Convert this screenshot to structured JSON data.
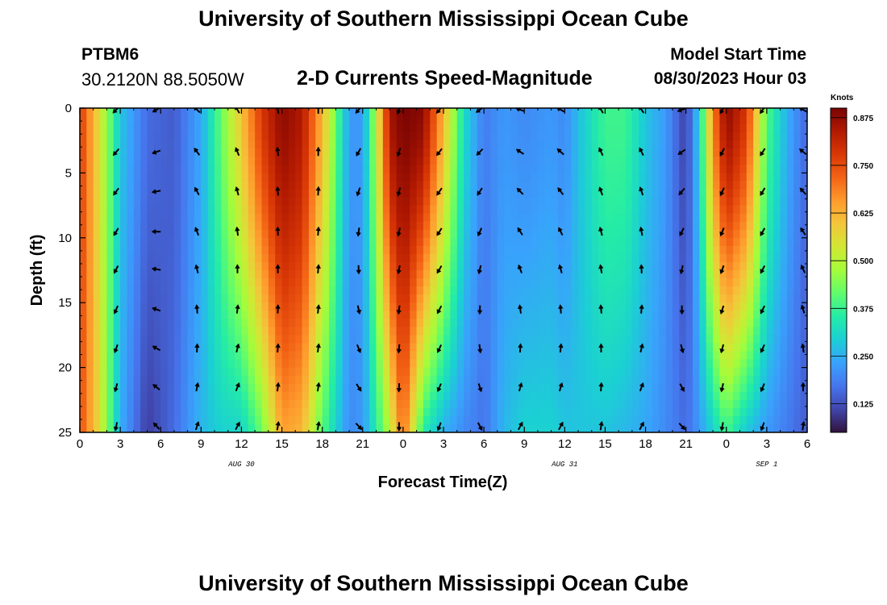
{
  "header": {
    "title": "University of Southern Mississippi Ocean Cube",
    "station": "PTBM6",
    "coords": "30.2120N  88.5050W",
    "chart_title": "2-D Currents Speed-Magnitude",
    "start_label": "Model Start Time",
    "start_value": "08/30/2023 Hour 03"
  },
  "footer": {
    "title": "University of Southern Mississippi Ocean Cube"
  },
  "colors": {
    "colormap": [
      "#30123b",
      "#4145ab",
      "#4675ed",
      "#39a2fc",
      "#1bcfd4",
      "#24eca6",
      "#61fc6c",
      "#a4fc3b",
      "#d1e834",
      "#f3c63a",
      "#fe9b2d",
      "#f36315",
      "#d93806",
      "#b11901",
      "#7a0403"
    ],
    "arrow": "#000000"
  },
  "chart_data": {
    "type": "heatmap",
    "title": "2-D Currents Speed-Magnitude",
    "xlabel": "Forecast Time(Z)",
    "ylabel": "Depth (ft)",
    "x_ticks": [
      "0",
      "3",
      "6",
      "9",
      "12",
      "15",
      "18",
      "21",
      "0",
      "3",
      "6",
      "9",
      "12",
      "15",
      "18",
      "21",
      "0",
      "3",
      "6"
    ],
    "x_hours": [
      0,
      3,
      6,
      9,
      12,
      15,
      18,
      21,
      24,
      27,
      30,
      33,
      36,
      39,
      42,
      45,
      48,
      51,
      54
    ],
    "y_ticks": [
      0,
      5,
      10,
      15,
      20,
      25
    ],
    "y_range": [
      0,
      25
    ],
    "x_range": [
      0,
      54
    ],
    "date_labels": [
      {
        "label": "AUG 30",
        "hour": 12
      },
      {
        "label": "AUG 31",
        "hour": 36
      },
      {
        "label": "SEP 1",
        "hour": 51
      }
    ],
    "colorbar": {
      "label": "Knots",
      "ticks": [
        0.125,
        0.25,
        0.375,
        0.5,
        0.625,
        0.75,
        0.875
      ],
      "tick_labels": [
        "0.125",
        "0.250",
        "0.375",
        "0.500",
        "0.625",
        "0.750",
        "0.875"
      ],
      "range": [
        0.05,
        0.9
      ]
    },
    "speed_profiles": [
      {
        "hour": 0,
        "top": 0.78,
        "bottom": 0.75
      },
      {
        "hour": 1.5,
        "top": 0.55,
        "bottom": 0.55
      },
      {
        "hour": 3,
        "top": 0.28,
        "bottom": 0.25
      },
      {
        "hour": 5,
        "top": 0.16,
        "bottom": 0.1
      },
      {
        "hour": 7,
        "top": 0.14,
        "bottom": 0.16
      },
      {
        "hour": 9,
        "top": 0.24,
        "bottom": 0.26
      },
      {
        "hour": 10.5,
        "top": 0.42,
        "bottom": 0.3
      },
      {
        "hour": 12,
        "top": 0.6,
        "bottom": 0.3
      },
      {
        "hour": 13.5,
        "top": 0.78,
        "bottom": 0.42
      },
      {
        "hour": 15,
        "top": 0.88,
        "bottom": 0.65
      },
      {
        "hour": 16.5,
        "top": 0.84,
        "bottom": 0.62
      },
      {
        "hour": 18,
        "top": 0.62,
        "bottom": 0.4
      },
      {
        "hour": 19,
        "top": 0.42,
        "bottom": 0.3
      },
      {
        "hour": 20,
        "top": 0.22,
        "bottom": 0.2
      },
      {
        "hour": 21,
        "top": 0.22,
        "bottom": 0.22
      },
      {
        "hour": 22,
        "top": 0.5,
        "bottom": 0.35
      },
      {
        "hour": 23,
        "top": 0.85,
        "bottom": 0.5
      },
      {
        "hour": 24,
        "top": 0.9,
        "bottom": 0.72
      },
      {
        "hour": 25.5,
        "top": 0.88,
        "bottom": 0.35
      },
      {
        "hour": 27,
        "top": 0.62,
        "bottom": 0.25
      },
      {
        "hour": 28.5,
        "top": 0.32,
        "bottom": 0.2
      },
      {
        "hour": 30,
        "top": 0.18,
        "bottom": 0.17
      },
      {
        "hour": 31.5,
        "top": 0.22,
        "bottom": 0.26
      },
      {
        "hour": 33,
        "top": 0.2,
        "bottom": 0.3
      },
      {
        "hour": 35,
        "top": 0.22,
        "bottom": 0.3
      },
      {
        "hour": 36,
        "top": 0.2,
        "bottom": 0.28
      },
      {
        "hour": 37.5,
        "top": 0.3,
        "bottom": 0.28
      },
      {
        "hour": 39,
        "top": 0.38,
        "bottom": 0.28
      },
      {
        "hour": 40.5,
        "top": 0.38,
        "bottom": 0.26
      },
      {
        "hour": 42,
        "top": 0.28,
        "bottom": 0.24
      },
      {
        "hour": 43.5,
        "top": 0.22,
        "bottom": 0.2
      },
      {
        "hour": 45,
        "top": 0.1,
        "bottom": 0.16
      },
      {
        "hour": 46,
        "top": 0.3,
        "bottom": 0.22
      },
      {
        "hour": 47,
        "top": 0.68,
        "bottom": 0.3
      },
      {
        "hour": 48,
        "top": 0.88,
        "bottom": 0.38
      },
      {
        "hour": 49.5,
        "top": 0.78,
        "bottom": 0.28
      },
      {
        "hour": 51,
        "top": 0.4,
        "bottom": 0.22
      },
      {
        "hour": 52.5,
        "top": 0.25,
        "bottom": 0.18
      },
      {
        "hour": 54,
        "top": 0.15,
        "bottom": 0.14
      }
    ],
    "vector_depths": [
      0,
      3.25,
      6.3,
      9.4,
      12.3,
      15.4,
      18.4,
      21.4,
      24.4
    ],
    "vector_hours": [
      3,
      6,
      9,
      12,
      15,
      18,
      21,
      24,
      27,
      30,
      33,
      36,
      39,
      42,
      45,
      48,
      51,
      54
    ],
    "direction_profiles": [
      {
        "hour": 3,
        "top": 225,
        "bottom": 190
      },
      {
        "hour": 6,
        "top": 240,
        "bottom": 320
      },
      {
        "hour": 9,
        "top": 315,
        "bottom": 20
      },
      {
        "hour": 12,
        "top": 330,
        "bottom": 30
      },
      {
        "hour": 15,
        "top": 350,
        "bottom": 10
      },
      {
        "hour": 18,
        "top": 0,
        "bottom": 10
      },
      {
        "hour": 21,
        "top": 220,
        "bottom": 135
      },
      {
        "hour": 24,
        "top": 200,
        "bottom": 180
      },
      {
        "hour": 27,
        "top": 220,
        "bottom": 200
      },
      {
        "hour": 30,
        "top": 235,
        "bottom": 150
      },
      {
        "hour": 33,
        "top": 290,
        "bottom": 30
      },
      {
        "hour": 36,
        "top": 300,
        "bottom": 30
      },
      {
        "hour": 39,
        "top": 330,
        "bottom": 10
      },
      {
        "hour": 42,
        "top": 325,
        "bottom": 30
      },
      {
        "hour": 45,
        "top": 250,
        "bottom": 135
      },
      {
        "hour": 48,
        "top": 210,
        "bottom": 190
      },
      {
        "hour": 51,
        "top": 215,
        "bottom": 200
      },
      {
        "hour": 54,
        "top": 300,
        "bottom": 10
      }
    ]
  }
}
